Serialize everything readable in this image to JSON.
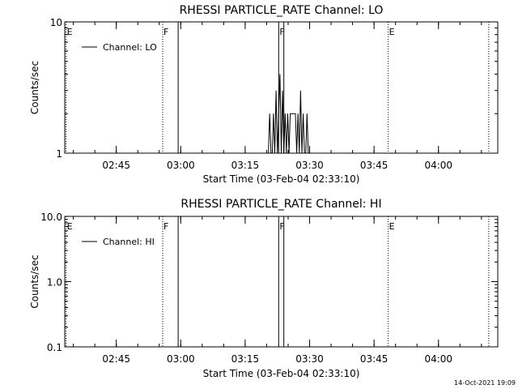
{
  "footer_timestamp": "14-Oct-2021 19:09",
  "chart_data": [
    {
      "type": "line",
      "title": "RHESSI PARTICLE_RATE Channel: LO",
      "xlabel": "Start Time (03-Feb-04 02:33:10)",
      "ylabel": "Counts/sec",
      "yscale": "log",
      "ylim": [
        1,
        10
      ],
      "yticks": [
        {
          "v": 1,
          "label": "1"
        },
        {
          "v": 10,
          "label": "10"
        }
      ],
      "xlim": [
        2.55,
        4.23
      ],
      "xticks": [
        {
          "v": 2.75,
          "label": "02:45"
        },
        {
          "v": 3.0,
          "label": "03:00"
        },
        {
          "v": 3.25,
          "label": "03:15"
        },
        {
          "v": 3.5,
          "label": "03:30"
        },
        {
          "v": 3.75,
          "label": "03:45"
        },
        {
          "v": 4.0,
          "label": "04:00"
        }
      ],
      "legend": {
        "label": "Channel: LO",
        "placement": "top-left"
      },
      "grid": false,
      "series": [
        {
          "name": "Channel: LO",
          "points": [
            [
              3.34,
              1
            ],
            [
              3.345,
              2
            ],
            [
              3.35,
              1
            ],
            [
              3.355,
              1
            ],
            [
              3.36,
              2
            ],
            [
              3.365,
              1
            ],
            [
              3.37,
              3
            ],
            [
              3.375,
              1
            ],
            [
              3.38,
              2
            ],
            [
              3.385,
              4
            ],
            [
              3.39,
              1
            ],
            [
              3.395,
              3
            ],
            [
              3.4,
              1
            ],
            [
              3.405,
              2
            ],
            [
              3.41,
              1
            ],
            [
              3.415,
              2
            ],
            [
              3.42,
              1
            ],
            [
              3.425,
              2
            ],
            [
              3.43,
              2
            ],
            [
              3.435,
              2
            ],
            [
              3.44,
              2
            ],
            [
              3.445,
              2
            ],
            [
              3.45,
              1
            ],
            [
              3.455,
              2
            ],
            [
              3.46,
              1
            ],
            [
              3.465,
              3
            ],
            [
              3.47,
              1
            ],
            [
              3.475,
              2
            ],
            [
              3.48,
              1
            ],
            [
              3.485,
              1
            ],
            [
              3.49,
              2
            ],
            [
              3.495,
              1
            ]
          ]
        }
      ],
      "markers": [
        {
          "v": 2.555,
          "label": "E",
          "style": "dotted"
        },
        {
          "v": 2.93,
          "label": "F",
          "style": "dotted"
        },
        {
          "v": 2.99,
          "label": "",
          "style": "solid"
        },
        {
          "v": 3.38,
          "label": "F",
          "style": "solid"
        },
        {
          "v": 3.4,
          "label": "",
          "style": "solid"
        },
        {
          "v": 3.805,
          "label": "E",
          "style": "dotted"
        },
        {
          "v": 4.195,
          "label": "",
          "style": "dotted"
        }
      ]
    },
    {
      "type": "line",
      "title": "RHESSI PARTICLE_RATE Channel: HI",
      "xlabel": "Start Time (03-Feb-04 02:33:10)",
      "ylabel": "Counts/sec",
      "yscale": "log",
      "ylim": [
        0.1,
        10
      ],
      "yticks": [
        {
          "v": 0.1,
          "label": "0.1"
        },
        {
          "v": 1,
          "label": "1.0"
        },
        {
          "v": 10,
          "label": "10.0"
        }
      ],
      "xlim": [
        2.55,
        4.23
      ],
      "xticks": [
        {
          "v": 2.75,
          "label": "02:45"
        },
        {
          "v": 3.0,
          "label": "03:00"
        },
        {
          "v": 3.25,
          "label": "03:15"
        },
        {
          "v": 3.5,
          "label": "03:30"
        },
        {
          "v": 3.75,
          "label": "03:45"
        },
        {
          "v": 4.0,
          "label": "04:00"
        }
      ],
      "legend": {
        "label": "Channel: HI",
        "placement": "top-left"
      },
      "grid": false,
      "series": [
        {
          "name": "Channel: HI",
          "points": []
        }
      ],
      "markers": [
        {
          "v": 2.555,
          "label": "E",
          "style": "dotted"
        },
        {
          "v": 2.93,
          "label": "F",
          "style": "dotted"
        },
        {
          "v": 2.99,
          "label": "",
          "style": "solid"
        },
        {
          "v": 3.38,
          "label": "F",
          "style": "solid"
        },
        {
          "v": 3.4,
          "label": "",
          "style": "solid"
        },
        {
          "v": 3.805,
          "label": "E",
          "style": "dotted"
        },
        {
          "v": 4.195,
          "label": "",
          "style": "dotted"
        }
      ]
    }
  ]
}
